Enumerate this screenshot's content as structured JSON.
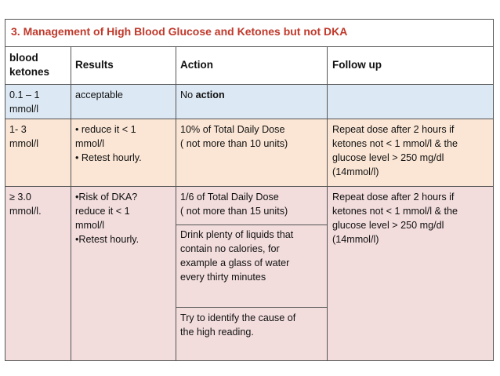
{
  "title": "3. Management of High Blood Glucose and Ketones but not DKA",
  "headers": {
    "col1": "blood\nketones",
    "col2": "Results",
    "col3": "Action",
    "col4": "Follow up"
  },
  "rows": [
    {
      "ketones": "0.1 – 1\nmmol/l",
      "results": "acceptable",
      "action_prefix": "No ",
      "action_bold": "action",
      "follow_up": ""
    },
    {
      "ketones": "1- 3\nmmol/l",
      "results": "• reduce it < 1\nmmol/l\n• Retest hourly.",
      "action": "10% of Total Daily Dose\n( not more than 10 units)",
      "follow_up": "Repeat dose after 2 hours if\nketones not < 1 mmol/l  & the\nglucose level > 250 mg/dl\n(14mmol/l)"
    },
    {
      "ketones": "≥ 3.0\nmmol/l.",
      "results": "•Risk of DKA?\nreduce it < 1\nmmol/l\n•Retest hourly.",
      "actions": [
        "1/6 of Total Daily Dose\n( not more than 15 units)",
        "Drink plenty of liquids that\ncontain no calories, for\nexample a glass of water\nevery thirty minutes",
        "Try to identify the cause of\nthe high reading."
      ],
      "follow_up": "Repeat dose after 2 hours if\nketones not < 1 mmol/l  & the\nglucose level > 250 mg/dl\n(14mmol/l)"
    }
  ],
  "colors": {
    "title_text": "#c0392b",
    "row1_bg": "#dce8f3",
    "row2_bg": "#fbe6d5",
    "row3_bg": "#f2dcdc",
    "border": "#555555"
  }
}
